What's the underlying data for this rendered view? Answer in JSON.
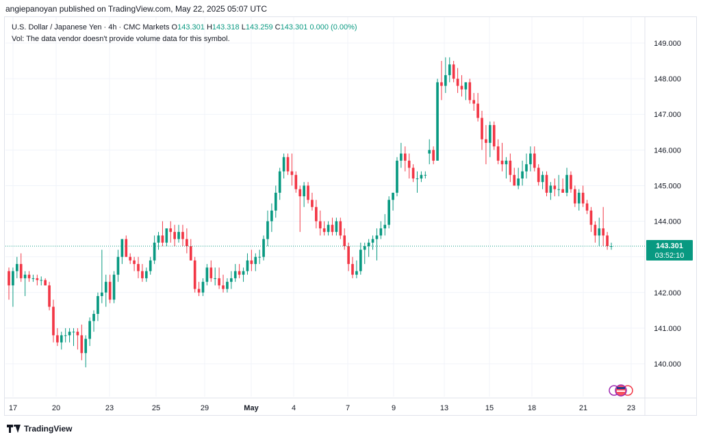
{
  "header": {
    "published": "angiepanoyan published on TradingView.com, May 22, 2025 05:07 UTC"
  },
  "legend": {
    "symbol": "U.S. Dollar / Japanese Yen · 4h · CMC Markets",
    "open_label": "O",
    "open": "143.301",
    "high_label": "H",
    "high": "143.318",
    "low_label": "L",
    "low": "143.259",
    "close_label": "C",
    "close": "143.301",
    "change": "0.000 (0.00%)",
    "vol_note": "Vol: The data vendor doesn't provide volume data for this symbol."
  },
  "price_tag": {
    "price": "143.301",
    "countdown": "03:52:10"
  },
  "footer": {
    "brand": "TradingView"
  },
  "colors": {
    "up": "#089981",
    "down": "#f23645",
    "grid": "#f0f3fa",
    "axis_text": "#131722",
    "tag": "#089981"
  },
  "chart_data": {
    "type": "candlestick",
    "y_ticks": [
      "140.000",
      "141.000",
      "142.000",
      "143.000",
      "144.000",
      "145.000",
      "146.000",
      "147.000",
      "148.000",
      "149.000"
    ],
    "x_ticks": [
      "17",
      "20",
      "23",
      "25",
      "29",
      "May",
      "4",
      "7",
      "9",
      "13",
      "15",
      "18",
      "21",
      "23"
    ],
    "y_range": [
      139.2,
      149.6
    ],
    "current_price": 143.301,
    "candles": [
      [
        142.6,
        142.7,
        141.8,
        142.2
      ],
      [
        142.2,
        142.7,
        141.6,
        142.6
      ],
      [
        142.6,
        143.0,
        142.4,
        142.8
      ],
      [
        142.8,
        143.1,
        142.3,
        142.4
      ],
      [
        142.4,
        142.6,
        141.9,
        142.5
      ],
      [
        142.5,
        142.6,
        142.3,
        142.4
      ],
      [
        142.4,
        142.5,
        142.3,
        142.4
      ],
      [
        142.4,
        142.5,
        142.2,
        142.35
      ],
      [
        142.35,
        142.45,
        142.2,
        142.35
      ],
      [
        142.35,
        142.4,
        142.2,
        142.2
      ],
      [
        142.2,
        142.3,
        141.5,
        141.6
      ],
      [
        141.6,
        141.8,
        140.6,
        140.8
      ],
      [
        140.8,
        141.0,
        140.5,
        140.6
      ],
      [
        140.6,
        140.9,
        140.4,
        140.8
      ],
      [
        140.8,
        141.0,
        140.6,
        140.8
      ],
      [
        140.8,
        141.0,
        140.6,
        140.9
      ],
      [
        140.9,
        141.0,
        140.5,
        140.9
      ],
      [
        140.9,
        141.0,
        140.4,
        140.8
      ],
      [
        140.8,
        141.1,
        140.1,
        140.3
      ],
      [
        140.3,
        140.8,
        139.9,
        140.7
      ],
      [
        140.7,
        141.3,
        140.5,
        141.2
      ],
      [
        141.2,
        141.5,
        140.9,
        141.4
      ],
      [
        141.4,
        142.0,
        141.2,
        141.9
      ],
      [
        141.9,
        143.2,
        141.7,
        142.0
      ],
      [
        142.0,
        142.5,
        141.6,
        142.3
      ],
      [
        142.3,
        142.5,
        141.7,
        141.8
      ],
      [
        141.8,
        142.6,
        141.7,
        142.5
      ],
      [
        142.5,
        143.2,
        142.3,
        143.0
      ],
      [
        143.0,
        143.5,
        142.8,
        143.5
      ],
      [
        143.5,
        143.6,
        143.0,
        143.0
      ],
      [
        143.0,
        143.1,
        142.8,
        142.9
      ],
      [
        142.9,
        143.0,
        142.6,
        142.8
      ],
      [
        142.8,
        143.0,
        142.4,
        142.6
      ],
      [
        142.6,
        142.8,
        142.3,
        142.4
      ],
      [
        142.4,
        142.7,
        142.3,
        142.6
      ],
      [
        142.6,
        143.0,
        142.5,
        142.9
      ],
      [
        142.9,
        143.6,
        142.8,
        143.4
      ],
      [
        143.4,
        143.7,
        143.2,
        143.6
      ],
      [
        143.6,
        144.0,
        143.3,
        143.4
      ],
      [
        143.4,
        143.8,
        143.3,
        143.8
      ],
      [
        143.8,
        144.0,
        143.4,
        143.7
      ],
      [
        143.7,
        143.9,
        143.3,
        143.5
      ],
      [
        143.5,
        143.9,
        143.4,
        143.7
      ],
      [
        143.7,
        143.9,
        143.3,
        143.5
      ],
      [
        143.5,
        143.8,
        143.1,
        143.3
      ],
      [
        143.3,
        143.5,
        142.9,
        142.9
      ],
      [
        142.9,
        143.0,
        142.0,
        142.1
      ],
      [
        142.1,
        142.3,
        141.9,
        142.0
      ],
      [
        142.0,
        142.4,
        141.9,
        142.3
      ],
      [
        142.3,
        142.8,
        142.2,
        142.7
      ],
      [
        142.7,
        142.9,
        142.3,
        142.4
      ],
      [
        142.4,
        142.7,
        142.2,
        142.4
      ],
      [
        142.4,
        142.7,
        142.1,
        142.2
      ],
      [
        142.2,
        142.5,
        142.0,
        142.1
      ],
      [
        142.1,
        142.4,
        142.0,
        142.3
      ],
      [
        142.3,
        142.6,
        142.1,
        142.4
      ],
      [
        142.4,
        142.8,
        142.3,
        142.6
      ],
      [
        142.6,
        142.8,
        142.4,
        142.5
      ],
      [
        142.5,
        142.7,
        142.3,
        142.6
      ],
      [
        142.6,
        143.1,
        142.5,
        142.9
      ],
      [
        142.9,
        143.2,
        142.6,
        142.8
      ],
      [
        142.8,
        143.1,
        142.6,
        143.0
      ],
      [
        143.0,
        143.2,
        142.8,
        143.0
      ],
      [
        143.0,
        143.6,
        142.9,
        143.5
      ],
      [
        143.5,
        144.3,
        143.3,
        144.0
      ],
      [
        144.0,
        144.5,
        143.7,
        144.3
      ],
      [
        144.3,
        145.0,
        144.1,
        144.8
      ],
      [
        144.8,
        145.5,
        144.6,
        145.4
      ],
      [
        145.4,
        145.9,
        145.2,
        145.8
      ],
      [
        145.8,
        145.9,
        145.3,
        145.4
      ],
      [
        145.4,
        145.9,
        145.0,
        145.3
      ],
      [
        145.3,
        145.4,
        144.8,
        144.9
      ],
      [
        144.9,
        145.0,
        143.7,
        144.7
      ],
      [
        144.7,
        145.1,
        144.4,
        145.0
      ],
      [
        145.0,
        145.1,
        144.5,
        144.6
      ],
      [
        144.6,
        144.8,
        144.3,
        144.4
      ],
      [
        144.4,
        144.6,
        143.8,
        144.0
      ],
      [
        144.0,
        144.3,
        143.6,
        143.8
      ],
      [
        143.8,
        144.0,
        143.6,
        143.7
      ],
      [
        143.7,
        144.0,
        143.6,
        143.9
      ],
      [
        143.9,
        144.1,
        143.6,
        143.7
      ],
      [
        143.7,
        144.1,
        143.6,
        144.0
      ],
      [
        144.0,
        144.1,
        143.5,
        143.6
      ],
      [
        143.6,
        143.8,
        143.2,
        143.3
      ],
      [
        143.3,
        143.4,
        142.6,
        142.8
      ],
      [
        142.8,
        143.0,
        142.4,
        142.5
      ],
      [
        142.5,
        142.9,
        142.4,
        142.6
      ],
      [
        142.6,
        143.4,
        142.5,
        143.2
      ],
      [
        143.2,
        143.4,
        142.8,
        143.3
      ],
      [
        143.3,
        143.5,
        143.0,
        143.4
      ],
      [
        143.4,
        143.6,
        143.2,
        143.5
      ],
      [
        143.5,
        143.8,
        142.9,
        143.6
      ],
      [
        143.6,
        144.0,
        143.5,
        143.8
      ],
      [
        143.8,
        144.2,
        143.6,
        143.9
      ],
      [
        143.9,
        144.7,
        143.8,
        144.6
      ],
      [
        144.6,
        144.8,
        144.3,
        144.8
      ],
      [
        144.8,
        145.8,
        144.7,
        145.7
      ],
      [
        145.7,
        146.2,
        145.5,
        145.9
      ],
      [
        145.9,
        146.1,
        145.4,
        145.7
      ],
      [
        145.7,
        145.9,
        145.2,
        145.5
      ],
      [
        145.5,
        145.6,
        145.1,
        145.2
      ],
      [
        145.2,
        145.4,
        144.8,
        145.2
      ],
      [
        145.2,
        145.4,
        145.1,
        145.3
      ],
      [
        145.3,
        145.4,
        145.2,
        145.3
      ],
      [
        145.9,
        146.3,
        145.6,
        146.0
      ],
      [
        146.0,
        146.1,
        145.6,
        145.7
      ],
      [
        145.7,
        148.0,
        145.7,
        147.9
      ],
      [
        147.9,
        148.5,
        147.4,
        147.8
      ],
      [
        147.8,
        148.6,
        147.6,
        148.1
      ],
      [
        148.1,
        148.6,
        147.9,
        148.4
      ],
      [
        148.4,
        148.5,
        147.9,
        148.0
      ],
      [
        148.0,
        148.3,
        147.6,
        147.8
      ],
      [
        147.8,
        148.1,
        147.5,
        147.7
      ],
      [
        147.7,
        147.9,
        147.4,
        147.9
      ],
      [
        147.9,
        148.0,
        147.3,
        147.4
      ],
      [
        147.4,
        147.6,
        147.1,
        147.3
      ],
      [
        147.3,
        147.6,
        146.8,
        146.9
      ],
      [
        146.9,
        147.1,
        146.0,
        146.3
      ],
      [
        146.3,
        146.7,
        145.6,
        146.2
      ],
      [
        146.2,
        146.8,
        145.8,
        146.7
      ],
      [
        146.7,
        146.8,
        146.0,
        146.1
      ],
      [
        146.1,
        146.3,
        145.6,
        145.7
      ],
      [
        145.7,
        146.2,
        145.4,
        145.6
      ],
      [
        145.6,
        145.8,
        145.2,
        145.7
      ],
      [
        145.7,
        145.9,
        145.1,
        145.3
      ],
      [
        145.3,
        145.5,
        145.0,
        145.0
      ],
      [
        145.0,
        145.5,
        144.9,
        145.2
      ],
      [
        145.2,
        145.7,
        145.0,
        145.4
      ],
      [
        145.4,
        145.9,
        145.2,
        145.6
      ],
      [
        145.6,
        146.1,
        145.4,
        145.9
      ],
      [
        145.9,
        146.1,
        145.4,
        145.5
      ],
      [
        145.5,
        145.6,
        145.0,
        145.1
      ],
      [
        145.1,
        145.4,
        144.9,
        145.3
      ],
      [
        145.3,
        145.4,
        144.7,
        144.8
      ],
      [
        144.8,
        145.1,
        144.6,
        145.0
      ],
      [
        145.0,
        145.2,
        144.7,
        144.9
      ],
      [
        144.9,
        145.3,
        144.7,
        144.9
      ],
      [
        144.9,
        145.2,
        144.8,
        144.8
      ],
      [
        144.8,
        145.5,
        144.7,
        145.3
      ],
      [
        145.3,
        145.4,
        144.8,
        144.9
      ],
      [
        144.9,
        145.0,
        144.4,
        144.5
      ],
      [
        144.5,
        144.9,
        144.3,
        144.8
      ],
      [
        144.8,
        145.0,
        144.4,
        144.5
      ],
      [
        144.5,
        144.6,
        144.2,
        144.3
      ],
      [
        144.3,
        144.4,
        143.7,
        143.9
      ],
      [
        143.9,
        144.0,
        143.4,
        143.6
      ],
      [
        143.6,
        144.1,
        143.3,
        143.8
      ],
      [
        143.8,
        144.4,
        143.3,
        143.6
      ],
      [
        143.6,
        143.7,
        143.2,
        143.3
      ],
      [
        143.3,
        143.4,
        143.2,
        143.3
      ]
    ]
  }
}
